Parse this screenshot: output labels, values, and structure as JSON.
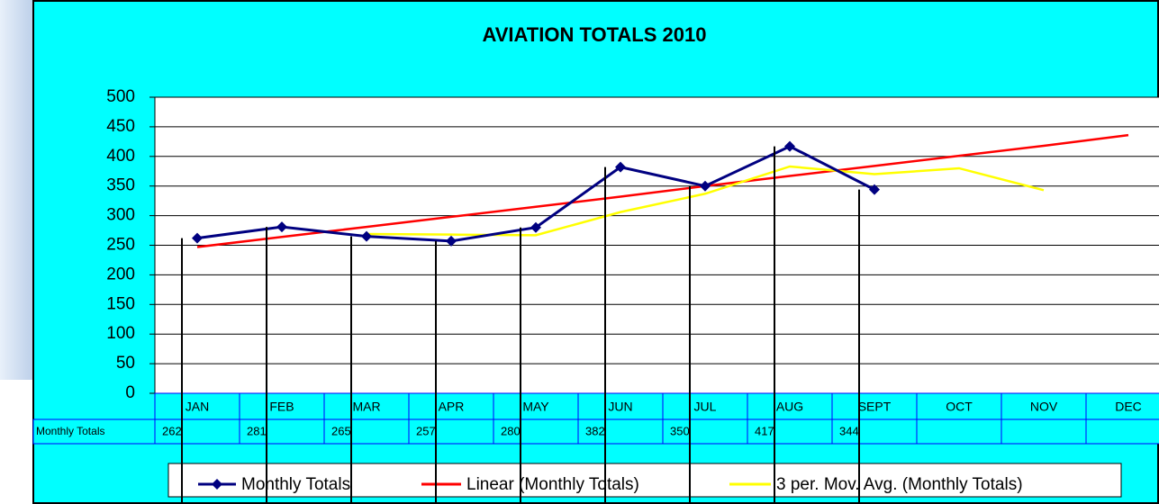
{
  "chart_data": {
    "type": "line",
    "title": "AVIATION TOTALS 2010",
    "categories": [
      "JAN",
      "FEB",
      "MAR",
      "APR",
      "MAY",
      "JUN",
      "JUL",
      "AUG",
      "SEPT",
      "OCT",
      "NOV",
      "DEC"
    ],
    "series": [
      {
        "name": "Monthly Totals",
        "color": "#000080",
        "values": [
          262,
          281,
          265,
          257,
          280,
          382,
          350,
          417,
          344,
          null,
          null,
          null
        ]
      },
      {
        "name": "Linear (Monthly Totals)",
        "color": "#ff0000",
        "values": [
          247,
          264,
          281,
          298,
          315,
          332,
          350,
          367,
          384,
          401,
          418,
          436
        ]
      },
      {
        "name": "3 per. Mov. Avg. (Monthly Totals)",
        "color": "#ffff00",
        "values": [
          null,
          null,
          269,
          268,
          267,
          306,
          337,
          383,
          370,
          380,
          343,
          null
        ]
      }
    ],
    "table_row_label": "Monthly Totals",
    "ylim": [
      0,
      500
    ],
    "yticks": [
      0,
      50,
      100,
      150,
      200,
      250,
      300,
      350,
      400,
      450,
      500
    ],
    "grid": true
  }
}
